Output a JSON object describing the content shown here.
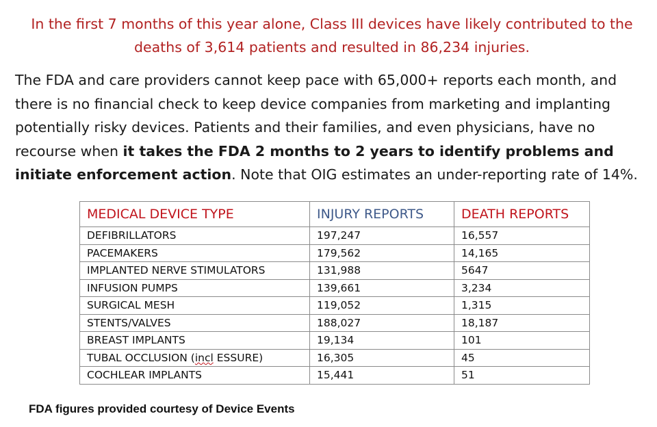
{
  "headline": "In the first 7 months of this year alone, Class III devices have likely contributed to the deaths of 3,614 patients and resulted in 86,234 injuries.",
  "paragraph": {
    "text_before_bold": "The FDA and care providers cannot keep pace with 65,000+ reports each month, and there is no financial check to keep device companies from marketing and implanting potentially risky devices. Patients and their families, and even physicians, have no recourse when ",
    "bold_text": "it takes the FDA 2 months to 2 years to identify problems and initiate enforcement action",
    "text_after_bold": ".  Note that OIG estimates an under-reporting rate of 14%."
  },
  "table": {
    "headers": {
      "type": "MEDICAL DEVICE TYPE",
      "injury": "INJURY REPORTS",
      "death": "DEATH REPORTS"
    },
    "rows": [
      {
        "type": "DEFIBRILLATORS",
        "injury": "197,247",
        "death": "16,557"
      },
      {
        "type": "PACEMAKERS",
        "injury": "179,562",
        "death": "14,165"
      },
      {
        "type": "IMPLANTED NERVE STIMULATORS",
        "injury": "131,988",
        "death": "5647"
      },
      {
        "type": "INFUSION PUMPS",
        "injury": "139,661",
        "death": "3,234"
      },
      {
        "type": "SURGICAL MESH",
        "injury": "119,052",
        "death": "1,315"
      },
      {
        "type": "STENTS/VALVES",
        "injury": "188,027",
        "death": "18,187"
      },
      {
        "type": "BREAST IMPLANTS",
        "injury": "19,134",
        "death": "101"
      },
      {
        "type_prefix": "TUBAL OCCLUSION (",
        "type_underlined": "incl",
        "type_suffix": " ESSURE)",
        "injury": "16,305",
        "death": "45"
      },
      {
        "type": "COCHLEAR IMPLANTS",
        "injury": "15,441",
        "death": "51"
      }
    ]
  },
  "footer": "FDA figures provided courtesy of Device Events",
  "colors": {
    "headline_red": "#b22222",
    "header_red": "#c0141c",
    "header_blue": "#3f5a8a"
  }
}
